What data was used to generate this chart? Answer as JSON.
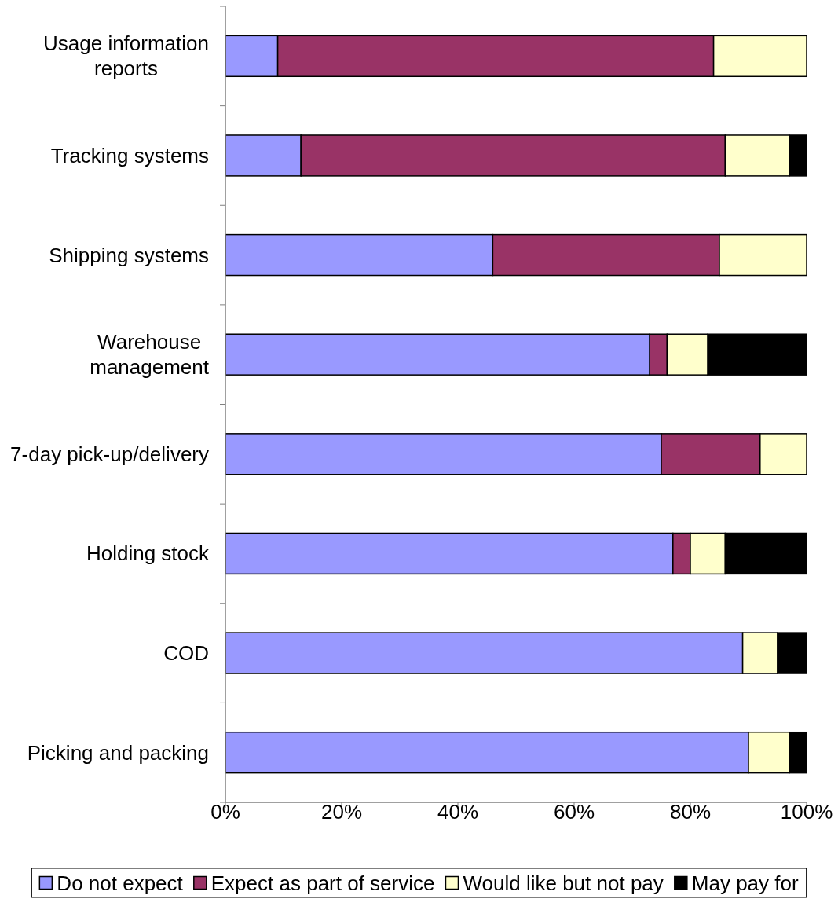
{
  "chart_data": {
    "type": "bar",
    "orientation": "horizontal",
    "stacked": true,
    "categories": [
      "Usage information reports",
      "Tracking systems",
      "Shipping systems",
      "Warehouse management",
      "7-day pick-up/delivery",
      "Holding stock",
      "COD",
      "Picking and packing"
    ],
    "series": [
      {
        "name": "Do not expect",
        "color": "#9999ff",
        "values": [
          9,
          13,
          46,
          73,
          75,
          77,
          89,
          90
        ]
      },
      {
        "name": "Expect as part of service",
        "color": "#993366",
        "values": [
          75,
          73,
          39,
          3,
          17,
          3,
          0,
          0
        ]
      },
      {
        "name": "Would like but not pay",
        "color": "#ffffcc",
        "values": [
          16,
          11,
          15,
          7,
          8,
          6,
          6,
          7
        ]
      },
      {
        "name": "May pay for",
        "color": "#000000",
        "values": [
          0,
          3,
          0,
          17,
          0,
          14,
          5,
          3
        ]
      }
    ],
    "xlim": [
      0,
      100
    ],
    "xticks": [
      {
        "value": 0,
        "label": "0%"
      },
      {
        "value": 20,
        "label": "20%"
      },
      {
        "value": 40,
        "label": "40%"
      },
      {
        "value": 60,
        "label": "60%"
      },
      {
        "value": 80,
        "label": "80%"
      },
      {
        "value": 100,
        "label": "100%"
      }
    ],
    "legend": "bottom"
  }
}
